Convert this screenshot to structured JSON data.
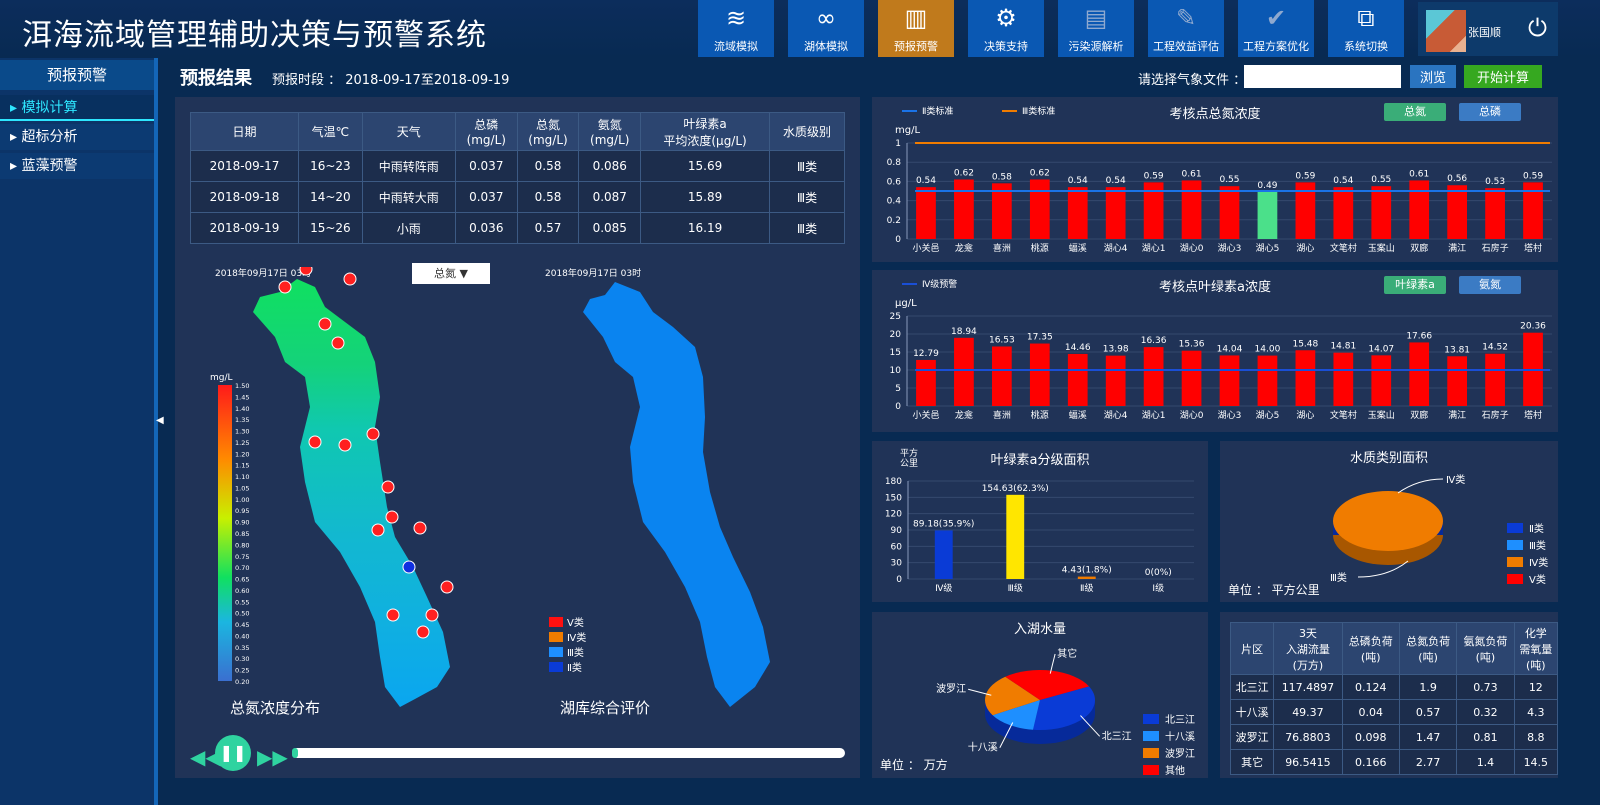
{
  "header": {
    "title": "洱海流域管理辅助决策与预警系统",
    "nav": [
      {
        "label": "流域模拟",
        "icon": "river-icon"
      },
      {
        "label": "湖体模拟",
        "icon": "lake-icon"
      },
      {
        "label": "预报预警",
        "icon": "warning-icon",
        "active": true
      },
      {
        "label": "决策支持",
        "icon": "decision-gear-icon"
      },
      {
        "label": "污染源解析",
        "icon": "report-icon"
      },
      {
        "label": "工程效益评估",
        "icon": "edit-icon"
      },
      {
        "label": "工程方案优化",
        "icon": "clipboard-check-icon"
      },
      {
        "label": "系统切换",
        "icon": "switch-icon"
      }
    ],
    "user": "张国顺"
  },
  "sidebar": {
    "title": "预报预警",
    "items": [
      {
        "label": "模拟计算",
        "active": true
      },
      {
        "label": "超标分析"
      },
      {
        "label": "蓝藻预警"
      }
    ]
  },
  "toolbar": {
    "title": "预报结果",
    "period": "预报时段 ： 2018-09-17至2018-09-19",
    "file_label": "请选择气象文件 ：",
    "file_value": "",
    "browse": "浏览",
    "start": "开始计算"
  },
  "forecast_table": {
    "headers": [
      "日期",
      "气温℃",
      "天气",
      "总磷\n(mg/L)",
      "总氮\n(mg/L)",
      "氨氮\n(mg/L)",
      "叶绿素a\n平均浓度(μg/L)",
      "水质级别"
    ],
    "rows": [
      [
        "2018-09-17",
        "16~23",
        "中雨转阵雨",
        "0.037",
        "0.58",
        "0.086",
        "15.69",
        "Ⅲ类"
      ],
      [
        "2018-09-18",
        "14~20",
        "中雨转大雨",
        "0.037",
        "0.58",
        "0.087",
        "15.89",
        "Ⅲ类"
      ],
      [
        "2018-09-19",
        "15~26",
        "小雨",
        "0.036",
        "0.57",
        "0.085",
        "16.19",
        "Ⅲ类"
      ]
    ]
  },
  "maps": {
    "time1": "2018年09月17日 03时",
    "time2": "2018年09月17日 03时",
    "layer": "总氮",
    "unit": "mg/L",
    "colorbar_min": 0.2,
    "colorbar_max": 1.5,
    "colorbar_step": 0.05,
    "title1": "总氮浓度分布",
    "title2": "湖库综合评价",
    "legend2": [
      {
        "label": "Ⅴ类",
        "color": "#ff1010"
      },
      {
        "label": "Ⅳ类",
        "color": "#f07c00"
      },
      {
        "label": "Ⅲ类",
        "color": "#1e8fff"
      },
      {
        "label": "Ⅱ类",
        "color": "#0a3bd6"
      }
    ]
  },
  "playback": {
    "progress": 0.01
  },
  "chart_data": [
    {
      "type": "bar",
      "title": "考核点总氮浓度",
      "ylabel": "mg/L",
      "ylim": [
        0,
        1
      ],
      "ystep": 0.2,
      "buttons": [
        "总氮",
        "总磷"
      ],
      "categories": [
        "小关邑",
        "龙龛",
        "喜洲",
        "桃源",
        "蝠溪",
        "湖心4",
        "湖心1",
        "湖心0",
        "湖心3",
        "湖心5",
        "湖心",
        "文笔村",
        "玉案山",
        "双廊",
        "满江",
        "石房子",
        "塔村"
      ],
      "values": [
        0.54,
        0.62,
        0.58,
        0.62,
        0.54,
        0.54,
        0.59,
        0.61,
        0.55,
        0.49,
        0.59,
        0.54,
        0.55,
        0.61,
        0.56,
        0.53,
        0.59
      ],
      "bar_colors": [
        "#ff0000",
        "#ff0000",
        "#ff0000",
        "#ff0000",
        "#ff0000",
        "#ff0000",
        "#ff0000",
        "#ff0000",
        "#ff0000",
        "#4be08a",
        "#ff0000",
        "#ff0000",
        "#ff0000",
        "#ff0000",
        "#ff0000",
        "#ff0000",
        "#ff0000"
      ],
      "lines": [
        {
          "name": "Ⅱ类标准",
          "value": 0.5,
          "color": "#1a73e8"
        },
        {
          "name": "Ⅲ类标准",
          "value": 1,
          "color": "#f07c00"
        }
      ]
    },
    {
      "type": "bar",
      "title": "考核点叶绿素a浓度",
      "ylabel": "μg/L",
      "ylim": [
        0,
        25
      ],
      "ystep": 5,
      "buttons": [
        "叶绿素a",
        "氨氮"
      ],
      "categories": [
        "小关邑",
        "龙龛",
        "喜洲",
        "桃源",
        "蝠溪",
        "湖心4",
        "湖心1",
        "湖心0",
        "湖心3",
        "湖心5",
        "湖心",
        "文笔村",
        "玉案山",
        "双廊",
        "满江",
        "石房子",
        "塔村"
      ],
      "values": [
        12.79,
        18.94,
        16.53,
        17.35,
        14.46,
        13.98,
        16.36,
        15.36,
        14.04,
        14.0,
        15.48,
        14.81,
        14.07,
        17.66,
        13.81,
        14.52,
        20.36
      ],
      "bar_colors": [
        "#ff0000"
      ],
      "lines": [
        {
          "name": "Ⅳ级预警",
          "value": 10,
          "color": "#1a4fd6"
        }
      ]
    },
    {
      "type": "bar",
      "title": "叶绿素a分级面积",
      "ylabel": "平方\n公里",
      "ylim": [
        0,
        180
      ],
      "ystep": 30,
      "categories": [
        "Ⅳ级",
        "Ⅲ级",
        "Ⅱ级",
        "Ⅰ级"
      ],
      "values": [
        89.18,
        154.63,
        4.43,
        0
      ],
      "labels": [
        "89.18(35.9%)",
        "154.63(62.3%)",
        "4.43(1.8%)",
        "0(0%)"
      ],
      "bar_colors": [
        "#0a3bd6",
        "#ffe600",
        "#f07c00",
        "#ff0000"
      ],
      "lines": []
    },
    {
      "type": "pie",
      "title": "水质类别面积",
      "unit": "单位 ： 平方公里",
      "categories": [
        "Ⅱ类",
        "Ⅲ类",
        "Ⅳ类",
        "Ⅴ类"
      ],
      "values": [
        0,
        0,
        100,
        0
      ],
      "colors": [
        "#0a3bd6",
        "#1e8fff",
        "#f07c00",
        "#ff0000"
      ],
      "slice_label": "Ⅳ类",
      "bottom_label": "Ⅲ类"
    },
    {
      "type": "pie",
      "title": "入湖水量",
      "unit": "单位 ： 万方",
      "categories": [
        "北三江",
        "十八溪",
        "波罗江",
        "其他"
      ],
      "values": [
        117.4897,
        49.37,
        76.8803,
        96.5415
      ],
      "colors": [
        "#0a3bd6",
        "#1e8fff",
        "#f07c00",
        "#ff0000"
      ],
      "slice_labels": [
        "北三江",
        "十八溪",
        "波罗江",
        "其它"
      ]
    }
  ],
  "load_table": {
    "headers": [
      "片区",
      "3天\n入湖流量\n(万方)",
      "总磷负荷\n(吨)",
      "总氮负荷\n(吨)",
      "氨氮负荷\n(吨)",
      "化学\n需氧量\n(吨)"
    ],
    "rows": [
      [
        "北三江",
        "117.4897",
        "0.124",
        "1.9",
        "0.73",
        "12"
      ],
      [
        "十八溪",
        "49.37",
        "0.04",
        "0.57",
        "0.32",
        "4.3"
      ],
      [
        "波罗江",
        "76.8803",
        "0.098",
        "1.47",
        "0.81",
        "8.8"
      ],
      [
        "其它",
        "96.5415",
        "0.166",
        "2.77",
        "1.4",
        "14.5"
      ]
    ]
  }
}
